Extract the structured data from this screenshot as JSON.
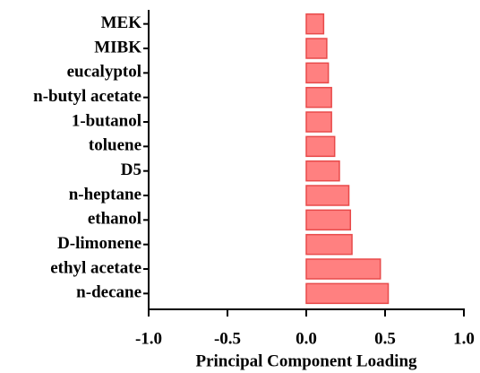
{
  "chart_data": {
    "type": "hbar",
    "x_label": "Principal Component Loading",
    "categories": [
      "MEK",
      "MIBK",
      "eucalyptol",
      "n-butyl acetate",
      "1-butanol",
      "toluene",
      "D5",
      "n-heptane",
      "ethanol",
      "D-limonene",
      "ethyl acetate",
      "n-decane"
    ],
    "values": [
      0.11,
      0.13,
      0.14,
      0.16,
      0.16,
      0.18,
      0.21,
      0.27,
      0.28,
      0.29,
      0.47,
      0.52
    ],
    "color": "#ff8080",
    "edge_color": "#e84a4a",
    "xlim": [
      -1,
      1
    ],
    "xticks": [
      {
        "value": -1,
        "label": "-1.0"
      },
      -0.5,
      {
        "value": 0,
        "label": "0.0"
      },
      0.5,
      {
        "value": 1,
        "label": "1.0"
      }
    ]
  }
}
